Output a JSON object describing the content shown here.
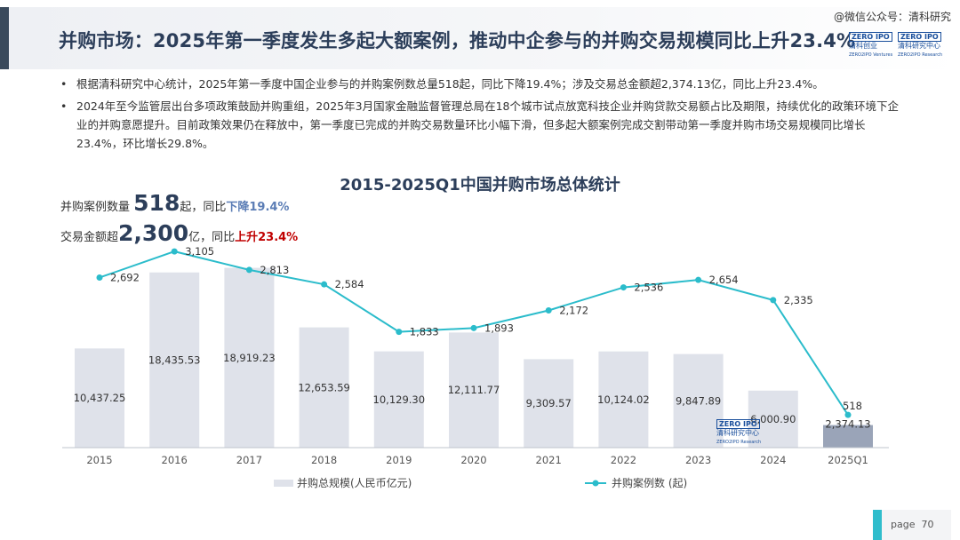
{
  "header": {
    "title": "并购市场：2025年第一季度发生多起大额案例，推动中企参与的并购交易规模同比上升23.4%",
    "watermark": "@微信公众号：清科研究",
    "logo1": {
      "mark": "ZERO IPO",
      "text": "清科创业",
      "sub": "ZERO2IPO Ventures"
    },
    "logo2": {
      "mark": "ZERO IPO",
      "text": "清科研究中心",
      "sub": "ZERO2IPO Research"
    }
  },
  "bullets": [
    {
      "marker": "•",
      "text": "根据清科研究中心统计，2025年第一季度中国企业参与的并购案例数总量518起，同比下降19.4%；涉及交易总金额超2,374.13亿，同比上升23.4%。"
    },
    {
      "marker": "•",
      "text": "2024年至今监管层出台多项政策鼓励并购重组，2025年3月国家金融监督管理总局在18个城市试点放宽科技企业并购贷款交易额占比及期限，持续优化的政策环境下企业的并购意愿提升。目前政策效果仍在释放中，第一季度已完成的并购交易数量环比小幅下滑，但多起大额案例完成交割带动第一季度并购市场交易规模同比增长23.4%，环比增长29.8%。"
    }
  ],
  "stats": {
    "cases": {
      "label": "并购案例数量",
      "value": "518",
      "unit": "起，同比",
      "change": "下降19.4%"
    },
    "amount": {
      "label": "交易金额超",
      "value": "2,300",
      "unit": "亿，同比",
      "change": "上升23.4%"
    }
  },
  "chart_logo": {
    "mark": "ZERO IPO",
    "text": "清科研究中心",
    "sub": "ZERO2IPO Research"
  },
  "page": {
    "label": "page",
    "number": "70"
  },
  "chart_data": {
    "type": "bar",
    "title": "2015-2025Q1中国并购市场总体统计",
    "categories": [
      "2015",
      "2016",
      "2017",
      "2018",
      "2019",
      "2020",
      "2021",
      "2022",
      "2023",
      "2024",
      "2025Q1"
    ],
    "series": [
      {
        "name": "并购总规模(人民币亿元)",
        "type": "bar",
        "axis": "left",
        "values": [
          10437.25,
          18435.53,
          18919.23,
          12653.59,
          10129.3,
          12111.77,
          9309.57,
          10124.02,
          9847.89,
          6000.9,
          2374.13
        ],
        "labels": [
          "10,437.25",
          "18,435.53",
          "18,919.23",
          "12,653.59",
          "10,129.30",
          "12,111.77",
          "9,309.57",
          "10,124.02",
          "9,847.89",
          "6,000.90",
          "2,374.13"
        ],
        "color": "#dfe2ea"
      },
      {
        "name": "并购案例数 (起)",
        "type": "line",
        "axis": "right",
        "values": [
          2692,
          3105,
          2813,
          2584,
          1833,
          1893,
          2172,
          2536,
          2654,
          2335,
          518
        ],
        "labels": [
          "2,692",
          "3,105",
          "2,813",
          "2,584",
          "1,833",
          "1,893",
          "2,172",
          "2,536",
          "2,654",
          "2,335",
          "518"
        ],
        "color": "#2bbccb"
      }
    ],
    "bar_axis_max": 20000,
    "line_axis_min": 0,
    "line_axis_max": 3500,
    "legend_position": "bottom",
    "grid": false
  }
}
